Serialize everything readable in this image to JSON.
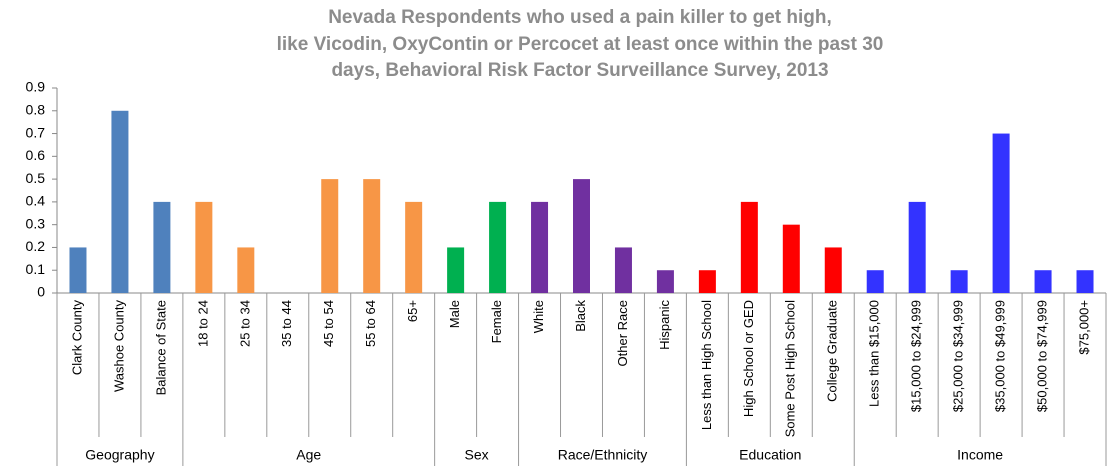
{
  "chart_data": {
    "type": "bar",
    "title": [
      "Nevada Respondents who used a pain killer to get high,",
      "like Vicodin, OxyContin or Percocet at least once within the past 30",
      "days, Behavioral Risk Factor Surveillance Survey, 2013"
    ],
    "groups": [
      {
        "name": "Geography",
        "color": "#4f81bd",
        "categories": [
          "Clark County",
          "Washoe County",
          "Balance of State"
        ],
        "values": [
          0.2,
          0.8,
          0.4
        ]
      },
      {
        "name": "Age",
        "color": "#f79646",
        "categories": [
          "18 to 24",
          "25 to 34",
          "35 to 44",
          "45 to 54",
          "55 to 64",
          "65+"
        ],
        "values": [
          0.4,
          0.2,
          0,
          0.5,
          0.5,
          0.4
        ]
      },
      {
        "name": "Sex",
        "color": "#00b050",
        "categories": [
          "Male",
          "Female"
        ],
        "values": [
          0.2,
          0.4
        ]
      },
      {
        "name": "Race/Ethnicity",
        "color": "#7030a0",
        "categories": [
          "White",
          "Black",
          "Other Race",
          "Hispanic"
        ],
        "values": [
          0.4,
          0.5,
          0.2,
          0.1
        ]
      },
      {
        "name": "Education",
        "color": "#ff0000",
        "categories": [
          "Less than High School",
          "High School or GED",
          "Some Post High School",
          "College Graduate"
        ],
        "values": [
          0.1,
          0.4,
          0.3,
          0.2
        ]
      },
      {
        "name": "Income",
        "color": "#3333ff",
        "categories": [
          "Less than $15,000",
          "$15,000 to $24,999",
          "$25,000 to $34,999",
          "$35,000 to $49,999",
          "$50,000 to $74,999",
          "$75,000+"
        ],
        "values": [
          0.1,
          0.4,
          0.1,
          0.7,
          0.1,
          0.1
        ]
      }
    ],
    "ylim": [
      0,
      0.9
    ],
    "yticks": [
      0,
      0.1,
      0.2,
      0.3,
      0.4,
      0.5,
      0.6,
      0.7,
      0.8,
      0.9
    ],
    "grid": false
  }
}
